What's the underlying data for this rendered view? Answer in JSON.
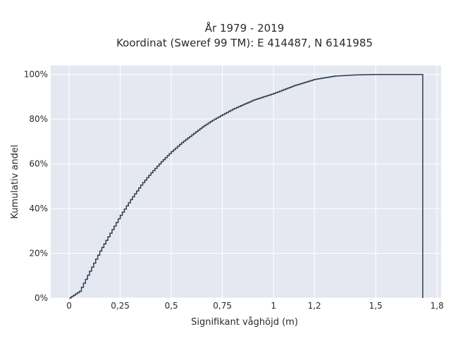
{
  "chart_data": {
    "type": "line",
    "title": "År 1979 - 2019",
    "subtitle": "Koordinat (Sweref 99 TM): E 414487, N 6141985",
    "xlabel": "Signifikant våghöjd (m)",
    "ylabel": "Kumulativ andel",
    "xlim": [
      -0.09,
      1.82
    ],
    "ylim": [
      0,
      1.04
    ],
    "xticks": [
      0,
      0.25,
      0.5,
      0.75,
      1,
      1.2,
      1.5,
      1.8
    ],
    "xtick_labels": [
      "0",
      "0,25",
      "0,5",
      "0,75",
      "1",
      "1,2",
      "1,5",
      "1,8"
    ],
    "yticks": [
      0,
      0.2,
      0.4,
      0.6,
      0.8,
      1.0
    ],
    "ytick_labels": [
      "0%",
      "20%",
      "40%",
      "60%",
      "80%",
      "100%"
    ],
    "grid": true,
    "step": true,
    "series": [
      {
        "name": "",
        "x": [
          0,
          0.05,
          0.1,
          0.15,
          0.2,
          0.25,
          0.3,
          0.35,
          0.4,
          0.45,
          0.5,
          0.55,
          0.6,
          0.65,
          0.7,
          0.75,
          0.8,
          0.9,
          1.0,
          1.1,
          1.2,
          1.3,
          1.4,
          1.5,
          1.6,
          1.7,
          1.73
        ],
        "y": [
          0,
          0.03,
          0.12,
          0.21,
          0.29,
          0.37,
          0.44,
          0.505,
          0.56,
          0.61,
          0.655,
          0.695,
          0.73,
          0.765,
          0.795,
          0.82,
          0.845,
          0.885,
          0.915,
          0.95,
          0.978,
          0.993,
          0.998,
          1.0,
          1.0,
          1.0,
          1.0
        ],
        "drop_to_zero_at": 1.73
      }
    ],
    "colors": {
      "plot_background": "#e5e8f1",
      "grid": "#ffffff",
      "line": "#2c3e50"
    }
  }
}
